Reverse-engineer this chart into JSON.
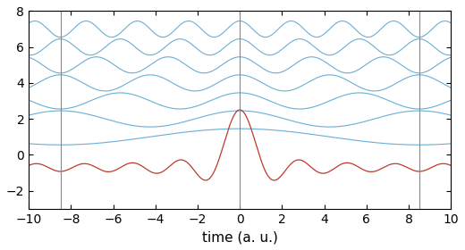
{
  "title": "",
  "xlabel": "time (a. u.)",
  "xlim": [
    -10,
    10
  ],
  "ylim": [
    -3,
    8
  ],
  "yticks": [
    -2,
    0,
    2,
    4,
    6,
    8
  ],
  "xticks": [
    -10,
    -8,
    -6,
    -4,
    -2,
    0,
    2,
    4,
    6,
    8,
    10
  ],
  "n_harmonics": 7,
  "offsets": [
    1,
    2,
    3,
    4,
    5,
    6,
    7
  ],
  "amplitude": 0.45,
  "base_freq": 1.0,
  "freq_step": 0.5,
  "blue_color": "#6aaed6",
  "red_color": "#c0392b",
  "vline_color": "#888888",
  "vline_positions": [
    -8.5,
    0.0,
    8.5
  ],
  "vline_lw": 0.8,
  "blue_lw": 0.8,
  "red_lw": 0.9,
  "pulse_period": 8.5,
  "n_sum_harmonics": 7,
  "sum_scale": 1.0,
  "background_color": "#ffffff",
  "figsize": [
    5.2,
    2.8
  ],
  "dpi": 100
}
